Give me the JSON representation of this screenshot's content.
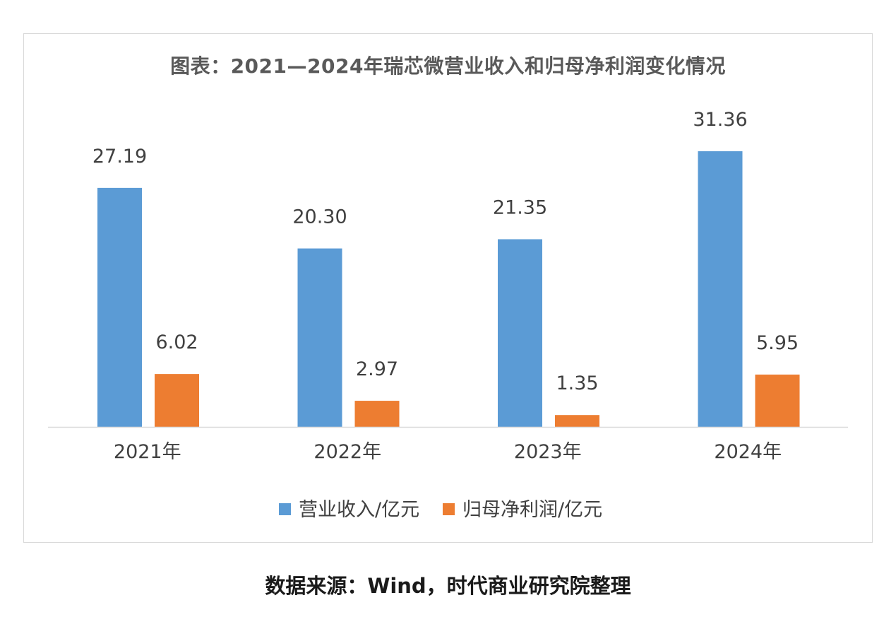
{
  "chart_data": {
    "type": "bar",
    "title": "图表：2021—2024年瑞芯微营业收入和归母净利润变化情况",
    "categories": [
      "2021年",
      "2022年",
      "2023年",
      "2024年"
    ],
    "series": [
      {
        "name": "营业收入/亿元",
        "values": [
          27.19,
          20.3,
          21.35,
          31.36
        ],
        "labels": [
          "27.19",
          "20.30",
          "21.35",
          "31.36"
        ],
        "color": "#5b9bd5"
      },
      {
        "name": "归母净利润/亿元",
        "values": [
          6.02,
          2.97,
          1.35,
          5.95
        ],
        "labels": [
          "6.02",
          "2.97",
          "1.35",
          "5.95"
        ],
        "color": "#ed7d31"
      }
    ],
    "ylim": [
      0,
      31.36
    ],
    "grid": false,
    "legend": "bottom"
  },
  "footer": {
    "source": "数据来源：Wind，时代商业研究院整理"
  }
}
